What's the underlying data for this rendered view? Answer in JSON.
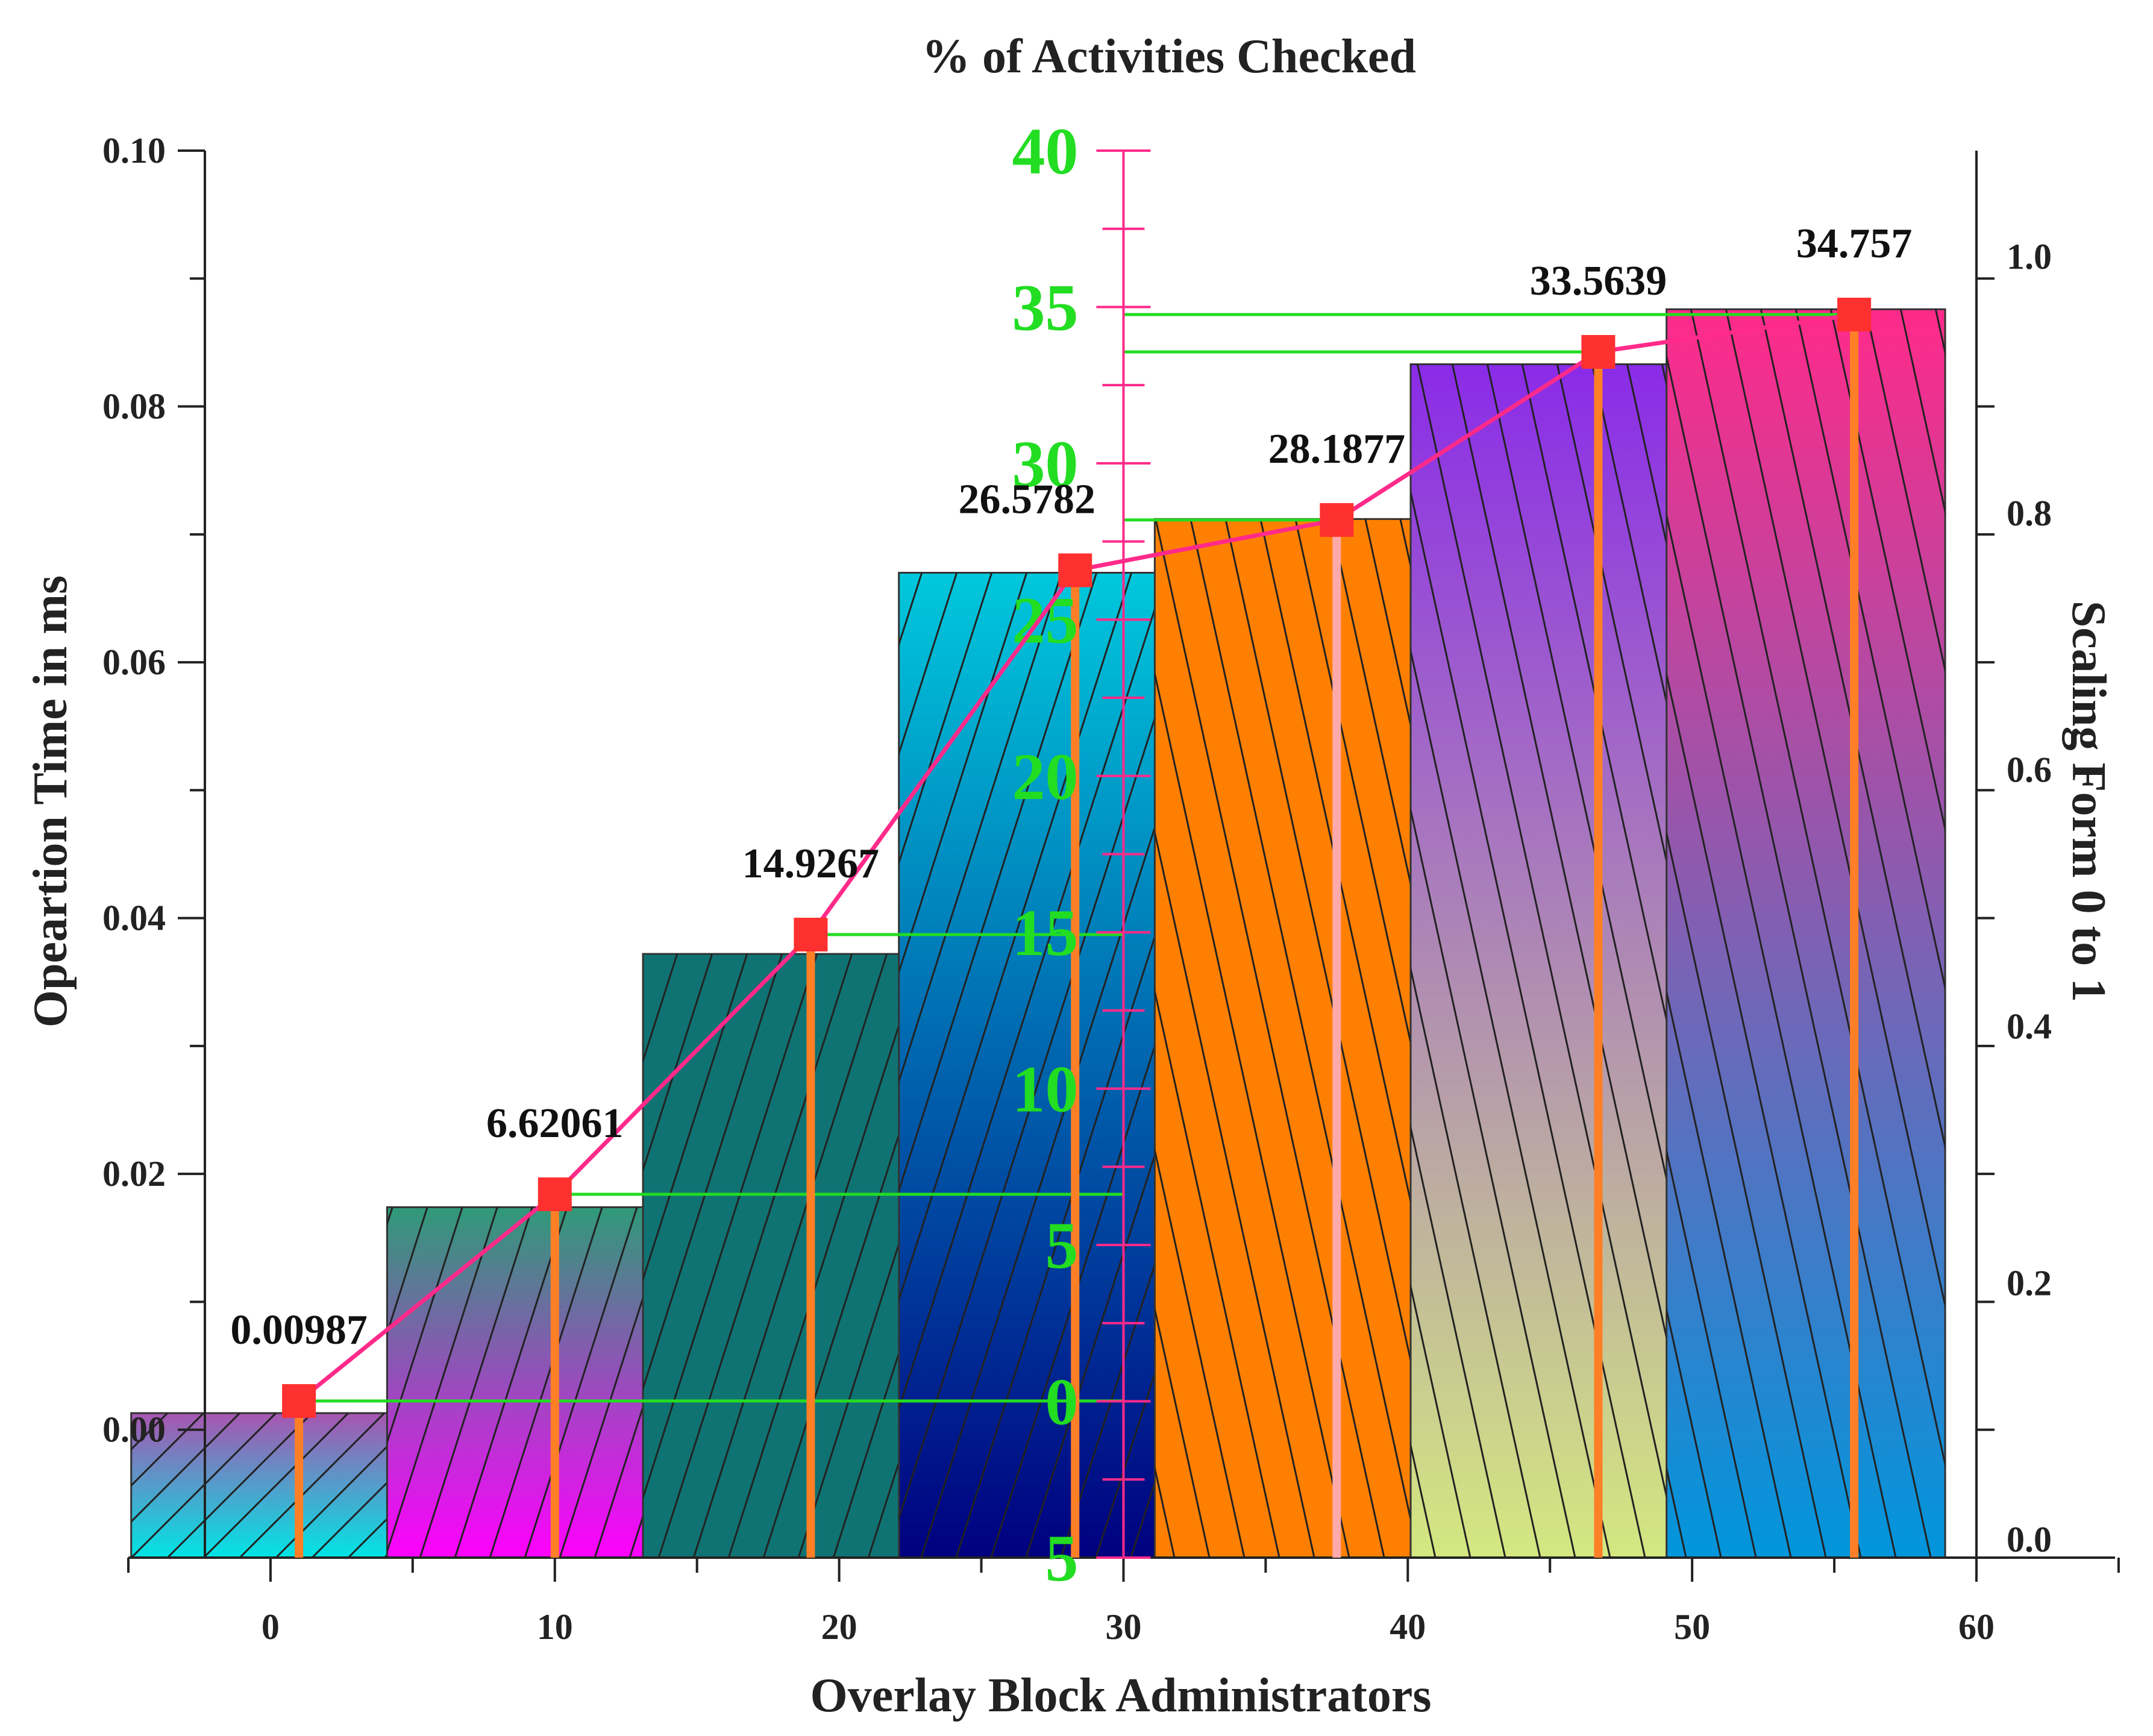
{
  "chart_data": {
    "type": "bar",
    "title": "% of Activities Checked",
    "xlabel": "Overlay Block Administrators",
    "ylabel": "Opeartion Time in ms",
    "y2label": "Scaling Form 0 to 1",
    "x_ticks": [
      "0",
      "10",
      "20",
      "30",
      "40",
      "50",
      "60"
    ],
    "y_ticks": [
      "0.00",
      "0.02",
      "0.04",
      "0.06",
      "0.08",
      "0.10"
    ],
    "y2_ticks": [
      "0.0",
      "0.2",
      "0.4",
      "0.6",
      "0.8",
      "1.0"
    ],
    "middle_axis_ticks": [
      "40",
      "35",
      "30",
      "25",
      "20",
      "15",
      "10",
      "5",
      "0",
      "5"
    ],
    "xlim": [
      -5,
      60
    ],
    "ylim": [
      -0.01,
      0.1
    ],
    "bars": [
      {
        "x": 0,
        "value": 0.0013,
        "colors": [
          "#a855b0",
          "#00e5e5"
        ]
      },
      {
        "x": 9,
        "value": 0.0174,
        "colors": [
          "#2f9a78",
          "#ff00ff"
        ]
      },
      {
        "x": 18,
        "value": 0.0372,
        "colors": [
          "#107373",
          "#107373"
        ]
      },
      {
        "x": 27,
        "value": 0.067,
        "colors": [
          "#00c8dc",
          "#000080"
        ]
      },
      {
        "x": 36,
        "value": 0.0712,
        "colors": [
          "#ff8000",
          "#ff8000"
        ]
      },
      {
        "x": 45,
        "value": 0.0833,
        "colors": [
          "#8a2be8",
          "#d4e880"
        ]
      },
      {
        "x": 54,
        "value": 0.0876,
        "colors": [
          "#ff2a8a",
          "#0096dc"
        ]
      }
    ],
    "line_series": {
      "x": [
        1,
        10,
        19,
        28.3,
        37.5,
        46.7,
        55.7
      ],
      "values": [
        0.00987,
        6.62061,
        14.9267,
        26.5782,
        28.1877,
        33.5639,
        34.757
      ],
      "labels": [
        "0.00987",
        "6.62061",
        "14.9267",
        "26.5782",
        "28.1877",
        "33.5639",
        "34.757"
      ],
      "color": "#ff2a8a",
      "marker_color": "#ff3030"
    },
    "middle_axis": {
      "x": 30,
      "range": [
        -5,
        40
      ]
    },
    "colors": {
      "drop_line": "#ff7f27",
      "guide_line": "#22dd22",
      "axis_pink": "#ff2a8a"
    }
  }
}
